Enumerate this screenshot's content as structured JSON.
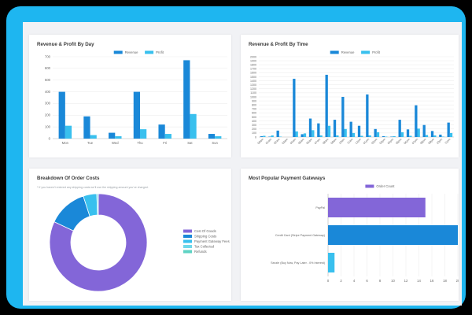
{
  "colors": {
    "primary": "#1a88d8",
    "secondary": "#39c0ee",
    "purple": "#8366d8",
    "grid": "#e9e9e9",
    "axis": "#8a8a8a"
  },
  "card1": {
    "title": "Revenue & Profit By Day",
    "chart_data": {
      "type": "bar",
      "categories": [
        "Mon",
        "Tue",
        "Wed",
        "Thu",
        "Fri",
        "Sat",
        "Sun"
      ],
      "series": [
        {
          "name": "Revenue",
          "values": [
            400,
            190,
            50,
            400,
            120,
            670,
            40
          ]
        },
        {
          "name": "Profit",
          "values": [
            110,
            30,
            20,
            80,
            40,
            210,
            20
          ]
        }
      ],
      "yticks": [
        "0",
        "100",
        "200",
        "300",
        "400",
        "500",
        "600",
        "700"
      ],
      "ylim": [
        0,
        700
      ],
      "legend": "top-center",
      "grid": true
    }
  },
  "card2": {
    "title": "Revenue & Profit By Time",
    "chart_data": {
      "type": "bar",
      "categories": [
        "00am",
        "01am",
        "02am",
        "03am",
        "04am",
        "05am",
        "06am",
        "07am",
        "08am",
        "09am",
        "10am",
        "11am",
        "12pm",
        "01pm",
        "02pm",
        "03pm",
        "04pm",
        "05pm",
        "06pm",
        "07pm",
        "08pm",
        "09pm",
        "10pm",
        "11pm"
      ],
      "series": [
        {
          "name": "Revenue",
          "values": [
            20,
            10,
            160,
            0,
            1450,
            70,
            460,
            340,
            1550,
            430,
            1000,
            380,
            280,
            1060,
            200,
            20,
            10,
            430,
            190,
            790,
            300,
            150,
            60,
            360
          ]
        },
        {
          "name": "Profit",
          "values": [
            30,
            40,
            10,
            0,
            140,
            90,
            170,
            40,
            280,
            40,
            200,
            100,
            30,
            40,
            120,
            10,
            20,
            120,
            30,
            210,
            50,
            40,
            10,
            100
          ]
        }
      ],
      "yticks": [
        "0",
        "100",
        "200",
        "300",
        "400",
        "500",
        "600",
        "700",
        "800",
        "900",
        "1000",
        "1100",
        "1200",
        "1300",
        "1400",
        "1500",
        "1600",
        "1700",
        "1800",
        "1900",
        "2000"
      ],
      "ylim": [
        0,
        2000
      ],
      "legend": "top-center",
      "grid": true
    }
  },
  "card3": {
    "title": "Breakdown Of Order Costs",
    "note": "* If you haven't entered any shipping costs we'll use the shipping amount you've charged.",
    "chart_data": {
      "type": "pie",
      "style": "donut",
      "labels": [
        "Cost Of Goods",
        "Shipping Costs",
        "Payment Gateway Fees",
        "Tax Collected",
        "Refunds"
      ],
      "values": [
        82,
        13,
        4.5,
        0.5,
        0
      ],
      "colors": [
        "#8366d8",
        "#1a88d8",
        "#39c0ee",
        "#6fd8ea",
        "#5fd3c4"
      ],
      "legend": "right"
    }
  },
  "card4": {
    "title": "Most Popular Payment Gateways",
    "chart_data": {
      "type": "bar",
      "orientation": "horizontal",
      "categories": [
        "PayPal",
        "Credit Card (Stripe Payment Gateway)",
        "Sezzle (Buy Now, Pay Later - 0% Interest)"
      ],
      "series": [
        {
          "name": "Order Count",
          "values": [
            15,
            20,
            1
          ]
        }
      ],
      "colors": [
        "#8366d8",
        "#1a88d8",
        "#39c0ee"
      ],
      "xticks": [
        "0",
        "2",
        "4",
        "6",
        "8",
        "10",
        "12",
        "14",
        "16",
        "18",
        "20"
      ],
      "xlim": [
        0,
        20
      ],
      "legend": "top-center",
      "grid": true
    }
  }
}
